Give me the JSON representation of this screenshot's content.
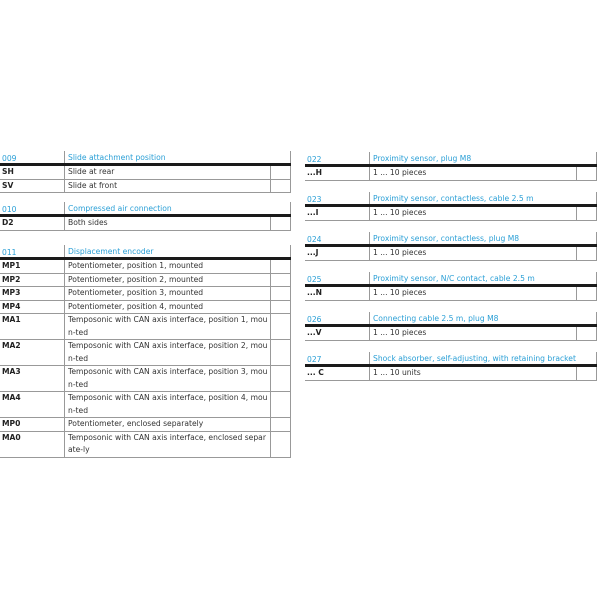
{
  "left": [
    {
      "num": "009",
      "title": "Slide attachment position",
      "rows": [
        {
          "code": "SH",
          "desc": "Slide at rear"
        },
        {
          "code": "SV",
          "desc": "Slide at front"
        }
      ]
    },
    {
      "num": "010",
      "title": "Compressed air connection",
      "rows": [
        {
          "code": "D2",
          "desc": "Both sides"
        }
      ]
    },
    {
      "num": "011",
      "title": "Displacement encoder",
      "rows": [
        {
          "code": "MP1",
          "desc": "Potentiometer, position 1, mounted"
        },
        {
          "code": "MP2",
          "desc": "Potentiometer, position 2, mounted"
        },
        {
          "code": "MP3",
          "desc": "Potentiometer, position 3, mounted"
        },
        {
          "code": "MP4",
          "desc": "Potentiometer, position 4, mounted"
        },
        {
          "code": "MA1",
          "desc": "Temposonic with CAN axis interface, position 1, moun-ted"
        },
        {
          "code": "MA2",
          "desc": "Temposonic with CAN axis interface, position 2, moun-ted"
        },
        {
          "code": "MA3",
          "desc": "Temposonic with CAN axis interface, position 3, moun-ted"
        },
        {
          "code": "MA4",
          "desc": "Temposonic with CAN axis interface, position 4, moun-ted"
        },
        {
          "code": "MP0",
          "desc": "Potentiometer, enclosed separately"
        },
        {
          "code": "MA0",
          "desc": "Temposonic with CAN axis interface, enclosed separate-ly"
        }
      ]
    }
  ],
  "right": [
    {
      "num": "022",
      "title": "Proximity sensor, plug M8",
      "rows": [
        {
          "code": "...H",
          "desc": "1 ... 10 pieces"
        }
      ]
    },
    {
      "num": "023",
      "title": "Proximity sensor, contactless, cable 2.5 m",
      "rows": [
        {
          "code": "...I",
          "desc": "1 ... 10 pieces"
        }
      ]
    },
    {
      "num": "024",
      "title": "Proximity sensor, contactless, plug M8",
      "rows": [
        {
          "code": "...J",
          "desc": "1 ... 10 pieces"
        }
      ]
    },
    {
      "num": "025",
      "title": "Proximity sensor, N/C contact, cable 2.5 m",
      "rows": [
        {
          "code": "...N",
          "desc": "1 ... 10 pieces"
        }
      ]
    },
    {
      "num": "026",
      "title": "Connecting cable 2.5 m, plug M8",
      "rows": [
        {
          "code": "...V",
          "desc": "1 ... 10 pieces"
        }
      ]
    },
    {
      "num": "027",
      "title": "Shock absorber, self-adjusting, with retaining bracket",
      "rows": [
        {
          "code": "... C",
          "desc": "1 ... 10 units"
        }
      ]
    }
  ]
}
